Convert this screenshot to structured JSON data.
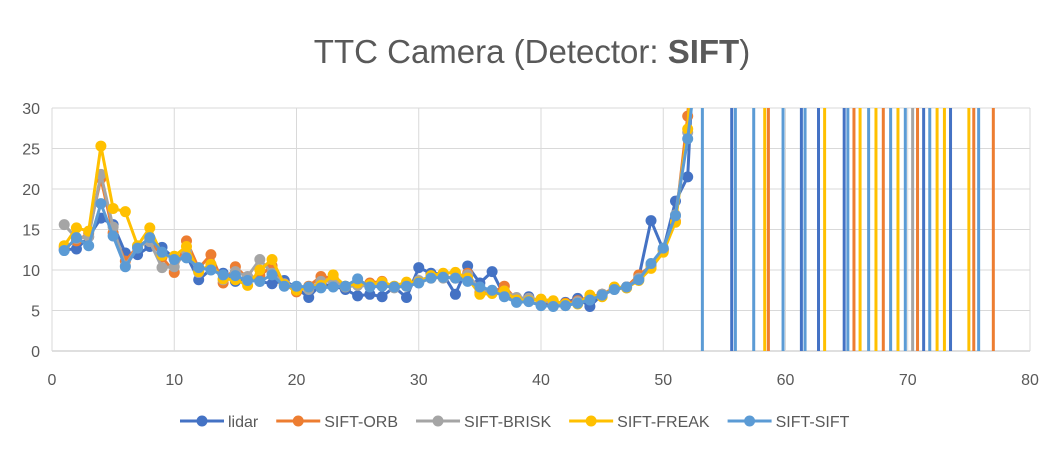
{
  "chart_data": {
    "type": "line",
    "title_parts": [
      "TTC Camera (Detector: ",
      "SIFT",
      ")"
    ],
    "xlim": [
      0,
      80
    ],
    "ylim": [
      0,
      30
    ],
    "x_ticks": [
      0,
      10,
      20,
      30,
      40,
      50,
      60,
      70,
      80
    ],
    "y_ticks": [
      0,
      5,
      10,
      15,
      20,
      25,
      30
    ],
    "grid": true,
    "legend_position": "bottom",
    "series": [
      {
        "name": "lidar",
        "color": "#4472C4",
        "points": [
          [
            1,
            12.5
          ],
          [
            2,
            12.6
          ],
          [
            3,
            14.1
          ],
          [
            4,
            16.4
          ],
          [
            5,
            15.6
          ],
          [
            6,
            12.1
          ],
          [
            7,
            11.9
          ],
          [
            8,
            12.9
          ],
          [
            9,
            12.8
          ],
          [
            10,
            11.4
          ],
          [
            11,
            11.8
          ],
          [
            12,
            8.8
          ],
          [
            13,
            10.1
          ],
          [
            14,
            9.6
          ],
          [
            15,
            8.6
          ],
          [
            16,
            9.1
          ],
          [
            17,
            8.6
          ],
          [
            18,
            8.3
          ],
          [
            19,
            8.7
          ],
          [
            20,
            7.8
          ],
          [
            21,
            6.6
          ],
          [
            22,
            8.3
          ],
          [
            23,
            8.0
          ],
          [
            24,
            7.6
          ],
          [
            25,
            6.8
          ],
          [
            26,
            7.0
          ],
          [
            27,
            6.7
          ],
          [
            28,
            7.9
          ],
          [
            29,
            6.6
          ],
          [
            30,
            10.3
          ],
          [
            31,
            9.6
          ],
          [
            32,
            9.5
          ],
          [
            33,
            7.0
          ],
          [
            34,
            10.5
          ],
          [
            35,
            8.4
          ],
          [
            36,
            9.8
          ],
          [
            37,
            6.8
          ],
          [
            38,
            6.3
          ],
          [
            39,
            6.7
          ],
          [
            40,
            6.0
          ],
          [
            41,
            5.8
          ],
          [
            42,
            6.0
          ],
          [
            43,
            6.5
          ],
          [
            44,
            5.5
          ],
          [
            45,
            7.0
          ],
          [
            46,
            7.7
          ],
          [
            47,
            7.9
          ],
          [
            48,
            9.1
          ],
          [
            49,
            16.1
          ],
          [
            50,
            12.5
          ],
          [
            51,
            18.5
          ],
          [
            52,
            21.5
          ],
          [
            52.6,
            40
          ]
        ]
      },
      {
        "name": "SIFT-ORB",
        "color": "#ED7D31",
        "points": [
          [
            1,
            12.8
          ],
          [
            2,
            13.6
          ],
          [
            3,
            14.5
          ],
          [
            4,
            21.3
          ],
          [
            5,
            14.6
          ],
          [
            6,
            11.1
          ],
          [
            7,
            12.9
          ],
          [
            8,
            13.8
          ],
          [
            9,
            11.6
          ],
          [
            10,
            9.7
          ],
          [
            11,
            13.6
          ],
          [
            12,
            10.2
          ],
          [
            13,
            11.9
          ],
          [
            14,
            8.4
          ],
          [
            15,
            10.4
          ],
          [
            16,
            9.0
          ],
          [
            17,
            9.3
          ],
          [
            18,
            10.5
          ],
          [
            19,
            8.3
          ],
          [
            20,
            7.3
          ],
          [
            21,
            8.0
          ],
          [
            22,
            9.2
          ],
          [
            23,
            9.0
          ],
          [
            24,
            8.0
          ],
          [
            25,
            8.4
          ],
          [
            26,
            8.4
          ],
          [
            27,
            8.6
          ],
          [
            28,
            7.9
          ],
          [
            29,
            8.0
          ],
          [
            30,
            8.6
          ],
          [
            31,
            9.0
          ],
          [
            32,
            9.2
          ],
          [
            33,
            9.0
          ],
          [
            34,
            9.6
          ],
          [
            35,
            7.2
          ],
          [
            36,
            7.2
          ],
          [
            37,
            8.0
          ],
          [
            38,
            6.3
          ],
          [
            39,
            6.5
          ],
          [
            40,
            6.2
          ],
          [
            41,
            5.9
          ],
          [
            42,
            5.9
          ],
          [
            43,
            6.2
          ],
          [
            44,
            6.7
          ],
          [
            45,
            7.0
          ],
          [
            46,
            7.8
          ],
          [
            47,
            7.9
          ],
          [
            48,
            9.4
          ],
          [
            49,
            10.5
          ],
          [
            50,
            12.4
          ],
          [
            51,
            16.0
          ],
          [
            52,
            29.0
          ],
          [
            52.5,
            40
          ]
        ]
      },
      {
        "name": "SIFT-BRISK",
        "color": "#A5A5A5",
        "points": [
          [
            1,
            15.6
          ],
          [
            2,
            13.9
          ],
          [
            3,
            14.1
          ],
          [
            4,
            21.8
          ],
          [
            5,
            15.3
          ],
          [
            6,
            10.5
          ],
          [
            7,
            12.9
          ],
          [
            8,
            13.5
          ],
          [
            9,
            10.3
          ],
          [
            10,
            10.4
          ],
          [
            11,
            12.3
          ],
          [
            12,
            9.7
          ],
          [
            13,
            10.7
          ],
          [
            14,
            8.8
          ],
          [
            15,
            9.8
          ],
          [
            16,
            9.2
          ],
          [
            17,
            11.3
          ],
          [
            18,
            9.6
          ],
          [
            19,
            8.3
          ],
          [
            20,
            7.9
          ],
          [
            21,
            7.6
          ],
          [
            22,
            8.6
          ],
          [
            23,
            8.6
          ],
          [
            24,
            7.9
          ],
          [
            25,
            8.1
          ],
          [
            26,
            8.0
          ],
          [
            27,
            8.2
          ],
          [
            28,
            7.8
          ],
          [
            29,
            8.2
          ],
          [
            30,
            8.7
          ],
          [
            31,
            9.2
          ],
          [
            32,
            9.0
          ],
          [
            33,
            9.1
          ],
          [
            34,
            9.4
          ],
          [
            35,
            7.7
          ],
          [
            36,
            7.2
          ],
          [
            37,
            7.4
          ],
          [
            38,
            6.6
          ],
          [
            39,
            6.5
          ],
          [
            40,
            6.3
          ],
          [
            41,
            5.9
          ],
          [
            42,
            5.6
          ],
          [
            43,
            6.1
          ],
          [
            44,
            6.5
          ],
          [
            45,
            7.0
          ],
          [
            46,
            7.6
          ],
          [
            47,
            7.8
          ],
          [
            48,
            9.0
          ],
          [
            49,
            10.6
          ],
          [
            50,
            12.6
          ],
          [
            51,
            16.8
          ],
          [
            52,
            27.0
          ],
          [
            52.5,
            40
          ]
        ]
      },
      {
        "name": "SIFT-FREAK",
        "color": "#FFC000",
        "points": [
          [
            1,
            13.0
          ],
          [
            2,
            15.2
          ],
          [
            3,
            14.8
          ],
          [
            4,
            25.3
          ],
          [
            5,
            17.6
          ],
          [
            6,
            17.2
          ],
          [
            7,
            13.0
          ],
          [
            8,
            15.2
          ],
          [
            9,
            11.8
          ],
          [
            10,
            11.7
          ],
          [
            11,
            12.9
          ],
          [
            12,
            9.8
          ],
          [
            13,
            10.7
          ],
          [
            14,
            8.9
          ],
          [
            15,
            8.8
          ],
          [
            16,
            8.1
          ],
          [
            17,
            10.0
          ],
          [
            18,
            11.3
          ],
          [
            19,
            8.2
          ],
          [
            20,
            7.5
          ],
          [
            21,
            7.9
          ],
          [
            22,
            8.1
          ],
          [
            23,
            9.4
          ],
          [
            24,
            8.0
          ],
          [
            25,
            8.4
          ],
          [
            26,
            8.2
          ],
          [
            27,
            8.5
          ],
          [
            28,
            8.0
          ],
          [
            29,
            8.5
          ],
          [
            30,
            8.5
          ],
          [
            31,
            9.3
          ],
          [
            32,
            9.6
          ],
          [
            33,
            9.7
          ],
          [
            34,
            9.0
          ],
          [
            35,
            7.0
          ],
          [
            36,
            7.1
          ],
          [
            37,
            7.4
          ],
          [
            38,
            6.3
          ],
          [
            39,
            6.2
          ],
          [
            40,
            6.4
          ],
          [
            41,
            6.2
          ],
          [
            42,
            5.8
          ],
          [
            43,
            5.8
          ],
          [
            44,
            6.9
          ],
          [
            45,
            6.7
          ],
          [
            46,
            7.9
          ],
          [
            47,
            7.8
          ],
          [
            48,
            8.7
          ],
          [
            49,
            10.2
          ],
          [
            50,
            12.2
          ],
          [
            51,
            15.9
          ],
          [
            52,
            27.4
          ],
          [
            52.5,
            40
          ]
        ]
      },
      {
        "name": "SIFT-SIFT",
        "color": "#5B9BD5",
        "points": [
          [
            1,
            12.4
          ],
          [
            2,
            14.0
          ],
          [
            3,
            13.0
          ],
          [
            4,
            18.2
          ],
          [
            5,
            14.2
          ],
          [
            6,
            10.4
          ],
          [
            7,
            12.7
          ],
          [
            8,
            14.0
          ],
          [
            9,
            12.2
          ],
          [
            10,
            11.3
          ],
          [
            11,
            11.5
          ],
          [
            12,
            10.3
          ],
          [
            13,
            10.0
          ],
          [
            14,
            9.4
          ],
          [
            15,
            9.3
          ],
          [
            16,
            8.7
          ],
          [
            17,
            8.6
          ],
          [
            18,
            9.4
          ],
          [
            19,
            8.0
          ],
          [
            20,
            8.0
          ],
          [
            21,
            7.9
          ],
          [
            22,
            7.8
          ],
          [
            23,
            7.9
          ],
          [
            24,
            8.0
          ],
          [
            25,
            8.9
          ],
          [
            26,
            7.9
          ],
          [
            27,
            8.0
          ],
          [
            28,
            7.9
          ],
          [
            29,
            8.0
          ],
          [
            30,
            8.4
          ],
          [
            31,
            9.0
          ],
          [
            32,
            9.1
          ],
          [
            33,
            9.0
          ],
          [
            34,
            8.6
          ],
          [
            35,
            7.9
          ],
          [
            36,
            7.5
          ],
          [
            37,
            6.7
          ],
          [
            38,
            6.0
          ],
          [
            39,
            6.1
          ],
          [
            40,
            5.6
          ],
          [
            41,
            5.5
          ],
          [
            42,
            5.6
          ],
          [
            43,
            5.9
          ],
          [
            44,
            6.3
          ],
          [
            45,
            6.9
          ],
          [
            46,
            7.6
          ],
          [
            47,
            7.9
          ],
          [
            48,
            8.8
          ],
          [
            49,
            10.8
          ],
          [
            50,
            12.7
          ],
          [
            51,
            16.7
          ],
          [
            52,
            26.2
          ],
          [
            53.1,
            40
          ]
        ]
      }
    ],
    "outlier_columns": [
      {
        "x": 53.2,
        "series": "SIFT-SIFT"
      },
      {
        "x": 55.6,
        "series": "lidar"
      },
      {
        "x": 55.9,
        "series": "SIFT-SIFT"
      },
      {
        "x": 57.4,
        "series": "SIFT-SIFT"
      },
      {
        "x": 58.3,
        "series": "SIFT-FREAK"
      },
      {
        "x": 58.6,
        "series": "SIFT-ORB"
      },
      {
        "x": 59.8,
        "series": "SIFT-SIFT"
      },
      {
        "x": 61.3,
        "series": "lidar"
      },
      {
        "x": 61.6,
        "series": "SIFT-SIFT"
      },
      {
        "x": 62.7,
        "series": "lidar"
      },
      {
        "x": 63.2,
        "series": "SIFT-FREAK"
      },
      {
        "x": 64.8,
        "series": "lidar"
      },
      {
        "x": 65.1,
        "series": "SIFT-SIFT"
      },
      {
        "x": 65.6,
        "series": "SIFT-ORB"
      },
      {
        "x": 66.1,
        "series": "SIFT-FREAK"
      },
      {
        "x": 66.8,
        "series": "SIFT-SIFT"
      },
      {
        "x": 67.4,
        "series": "SIFT-FREAK"
      },
      {
        "x": 68.0,
        "series": "SIFT-ORB"
      },
      {
        "x": 68.6,
        "series": "SIFT-SIFT"
      },
      {
        "x": 69.2,
        "series": "SIFT-FREAK"
      },
      {
        "x": 69.8,
        "series": "SIFT-SIFT"
      },
      {
        "x": 70.4,
        "series": "SIFT-BRISK"
      },
      {
        "x": 70.8,
        "series": "SIFT-ORB"
      },
      {
        "x": 71.3,
        "series": "lidar"
      },
      {
        "x": 71.8,
        "series": "SIFT-SIFT"
      },
      {
        "x": 72.4,
        "series": "SIFT-FREAK"
      },
      {
        "x": 73.0,
        "series": "SIFT-FREAK"
      },
      {
        "x": 73.5,
        "series": "lidar"
      },
      {
        "x": 75.0,
        "series": "SIFT-FREAK"
      },
      {
        "x": 75.4,
        "series": "SIFT-ORB"
      },
      {
        "x": 75.8,
        "series": "SIFT-SIFT"
      },
      {
        "x": 77.0,
        "series": "SIFT-ORB"
      }
    ]
  }
}
